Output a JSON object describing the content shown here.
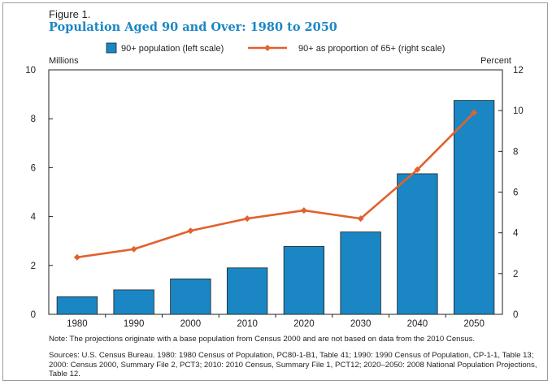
{
  "figure": {
    "label": "Figure 1.",
    "title": "Population Aged 90 and Over: 1980 to 2050",
    "note": "Note: The projections originate with a base population from Census 2000 and are not based on data from the 2010 Census.",
    "sources": "Sources: U.S. Census Bureau. 1980: 1980 Census of Population, PC80-1-B1, Table 41; 1990: 1990 Census of Population, CP-1-1, Table 13; 2000: Census 2000, Summary File 2, PCT3; 2010: 2010 Census, Summary File 1, PCT12; 2020–2050: 2008 National Population Projections, Table 12."
  },
  "colors": {
    "bar_fill": "#1a87c4",
    "bar_stroke": "#231f20",
    "line": "#e2612d",
    "title": "#1a87c4"
  },
  "chart_data": {
    "type": "bar",
    "categories": [
      "1980",
      "1990",
      "2000",
      "2010",
      "2020",
      "2030",
      "2040",
      "2050"
    ],
    "series": [
      {
        "name": "90+ population (left scale)",
        "type": "bar",
        "axis": "left",
        "values": [
          0.72,
          1.0,
          1.45,
          1.9,
          2.78,
          3.37,
          5.75,
          8.75
        ]
      },
      {
        "name": "90+ as proportion of 65+ (right scale)",
        "type": "line",
        "axis": "right",
        "values": [
          2.8,
          3.2,
          4.1,
          4.7,
          5.1,
          4.7,
          7.1,
          9.9
        ]
      }
    ],
    "left_axis": {
      "label": "Millions",
      "range": [
        0,
        10
      ],
      "ticks": [
        "0",
        "2",
        "4",
        "6",
        "8",
        "10"
      ]
    },
    "right_axis": {
      "label": "Percent",
      "range": [
        0,
        12
      ],
      "ticks": [
        "0",
        "2",
        "4",
        "6",
        "8",
        "10",
        "12"
      ]
    },
    "legend": "top-center",
    "grid": false
  }
}
